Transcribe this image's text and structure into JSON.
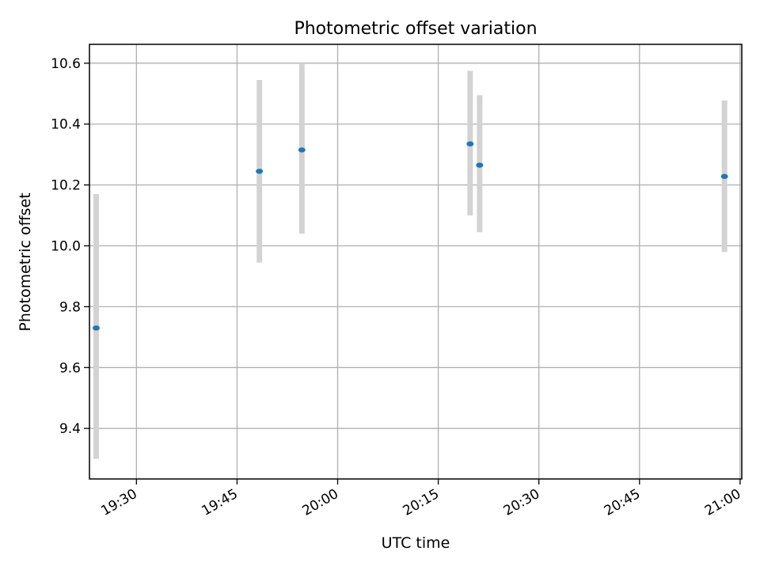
{
  "chart_data": {
    "type": "scatter",
    "title": "Photometric offset variation",
    "xlabel": "UTC time",
    "ylabel": "Photometric offset",
    "x_tick_labels": [
      "19:30",
      "19:45",
      "20:00",
      "20:15",
      "20:30",
      "20:45",
      "21:00"
    ],
    "x_ticks": [
      "19:30",
      "19:45",
      "20:00",
      "20:15",
      "20:30",
      "20:45",
      "21:00"
    ],
    "y_ticks": [
      9.4,
      9.6,
      9.8,
      10.0,
      10.2,
      10.4,
      10.6
    ],
    "y_tick_labels": [
      "9.4",
      "9.6",
      "9.8",
      "10.0",
      "10.2",
      "10.4",
      "10.6"
    ],
    "xlim": [
      "19:23:00",
      "21:00:15"
    ],
    "ylim": [
      9.234,
      10.662
    ],
    "grid": true,
    "points": [
      {
        "x": "19:24:00",
        "y": 9.73,
        "yerr_low": 9.3,
        "yerr_high": 10.17
      },
      {
        "x": "19:48:20",
        "y": 10.245,
        "yerr_low": 9.945,
        "yerr_high": 10.545
      },
      {
        "x": "19:54:40",
        "y": 10.315,
        "yerr_low": 10.04,
        "yerr_high": 10.6
      },
      {
        "x": "20:19:45",
        "y": 10.335,
        "yerr_low": 10.1,
        "yerr_high": 10.575
      },
      {
        "x": "20:21:10",
        "y": 10.265,
        "yerr_low": 10.045,
        "yerr_high": 10.495
      },
      {
        "x": "20:57:40",
        "y": 10.228,
        "yerr_low": 9.98,
        "yerr_high": 10.478
      }
    ],
    "colors": {
      "point": "#1f77b4",
      "errorbar": "#d3d3d3",
      "grid": "#b0b0b0",
      "axes": "#000000"
    }
  }
}
